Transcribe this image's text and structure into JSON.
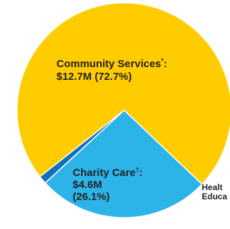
{
  "chart_data": {
    "type": "pie",
    "slices": [
      {
        "name": "Community Services",
        "marker": "*",
        "value_text": "$12.7M",
        "percent_text": "(72.7%)",
        "value": 12.7,
        "percent": 72.7,
        "color": "#FFCC00"
      },
      {
        "name": "Charity Care",
        "marker": "†",
        "value_text": "$4.6M",
        "percent_text": "(26.1%)",
        "value": 4.6,
        "percent": 26.1,
        "color": "#2CB4E8"
      },
      {
        "name": "Health Professions Education",
        "value": 0.2,
        "percent": 1.2,
        "color": "#1171BA"
      }
    ],
    "visible_labels": {
      "health_line1": "Healt",
      "health_line2": "Educa"
    }
  }
}
